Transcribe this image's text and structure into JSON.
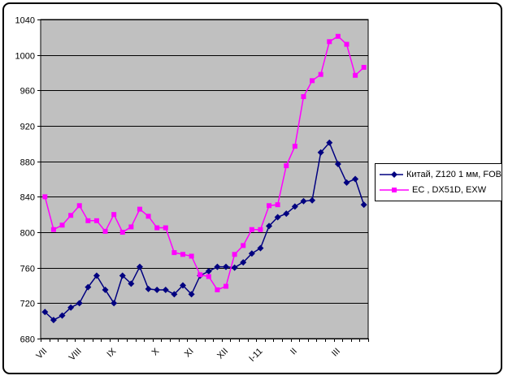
{
  "chart_data": {
    "type": "line",
    "title": "",
    "xlabel": "",
    "ylabel": "",
    "plot_bg": "#C0C0C0",
    "grid": true,
    "legend_position": "right",
    "weeks_count": 38,
    "y_axis": {
      "min": 680,
      "max": 1040,
      "step": 40,
      "ticks": [
        680,
        720,
        760,
        800,
        840,
        880,
        920,
        960,
        1000,
        1040
      ]
    },
    "x_axis": {
      "tick_label_style": "rotated-45",
      "month_labels": [
        {
          "label": "VII",
          "week_index": 0
        },
        {
          "label": "VIII",
          "week_index": 4
        },
        {
          "label": "IX",
          "week_index": 8
        },
        {
          "label": "X",
          "week_index": 13
        },
        {
          "label": "XI",
          "week_index": 17
        },
        {
          "label": "XII",
          "week_index": 21
        },
        {
          "label": "I-11",
          "week_index": 25
        },
        {
          "label": "II",
          "week_index": 29
        },
        {
          "label": "III",
          "week_index": 34
        }
      ]
    },
    "series": [
      {
        "name": "Китай, Z120 1 мм, FOB",
        "color": "#000080",
        "marker": "diamond",
        "values": [
          710,
          701,
          706,
          715,
          720,
          738,
          751,
          735,
          720,
          751,
          742,
          761,
          736,
          735,
          735,
          730,
          740,
          730,
          751,
          756,
          761,
          761,
          760,
          766,
          776,
          782,
          807,
          817,
          821,
          829,
          835,
          836,
          890,
          901,
          877,
          856,
          860,
          831
        ]
      },
      {
        "name": "ЕС , DX51D, EXW",
        "color": "#FF00FF",
        "marker": "square",
        "values": [
          840,
          803,
          808,
          819,
          830,
          813,
          813,
          801,
          820,
          800,
          806,
          826,
          818,
          805,
          805,
          777,
          775,
          773,
          752,
          750,
          735,
          739,
          775,
          785,
          803,
          803,
          830,
          831,
          875,
          897,
          953,
          971,
          978,
          1015,
          1021,
          1012,
          977,
          986
        ]
      }
    ]
  }
}
